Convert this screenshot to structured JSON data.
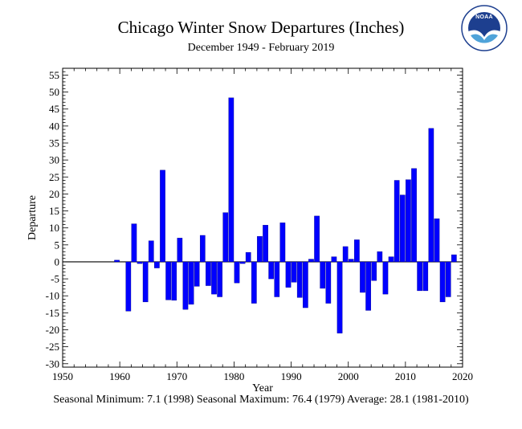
{
  "logo": {
    "text": "NOAA"
  },
  "chart_data": {
    "type": "bar",
    "title": "Chicago Winter Snow Departures (Inches)",
    "subtitle": "December 1949 - February 2019",
    "xlabel": "Year",
    "ylabel": "Departure",
    "footer": "Seasonal Minimum: 7.1 (1998) Seasonal Maximum: 76.4 (1979) Average: 28.1 (1981-2010)",
    "xlim": [
      1950,
      2020
    ],
    "ylim": [
      -31,
      57
    ],
    "x_ticks": [
      1950,
      1960,
      1970,
      1980,
      1990,
      2000,
      2010,
      2020
    ],
    "y_ticks": [
      -30,
      -25,
      -20,
      -15,
      -10,
      -5,
      0,
      5,
      10,
      15,
      20,
      25,
      30,
      35,
      40,
      45,
      50,
      55
    ],
    "bar_color": "#0000ff",
    "grid": false,
    "series": [
      {
        "x": [
          1950,
          1951,
          1952,
          1953,
          1954,
          1955,
          1956,
          1957,
          1958,
          1959,
          1960,
          1961,
          1962,
          1963,
          1964,
          1965,
          1966,
          1967,
          1968,
          1969,
          1970,
          1971,
          1972,
          1973,
          1974,
          1975,
          1976,
          1977,
          1978,
          1979,
          1980,
          1981,
          1982,
          1983,
          1984,
          1985,
          1986,
          1987,
          1988,
          1989,
          1990,
          1991,
          1992,
          1993,
          1994,
          1995,
          1996,
          1997,
          1998,
          1999,
          2000,
          2001,
          2002,
          2003,
          2004,
          2005,
          2006,
          2007,
          2008,
          2009,
          2010,
          2011,
          2012,
          2013,
          2014,
          2015,
          2016,
          2017,
          2018
        ],
        "values": [
          0,
          0,
          0,
          0,
          0,
          0,
          0,
          0,
          0,
          0.5,
          0,
          -14.5,
          11.2,
          -0.5,
          -11.8,
          6.2,
          -1.8,
          27,
          -11.2,
          -11.3,
          7,
          -14,
          -12.5,
          -7.2,
          7.8,
          -7,
          -9.5,
          -10.3,
          14.5,
          48.3,
          -6.2,
          -0.5,
          2.8,
          -12.2,
          7.5,
          10.8,
          -5,
          -10.3,
          11.5,
          -7.5,
          -6,
          -10.5,
          -13.5,
          0.8,
          13.5,
          -7.8,
          -12.2,
          1.5,
          -21,
          4.5,
          0.8,
          6.5,
          -9,
          -14.3,
          -5.5,
          3,
          -9.5,
          1.5,
          24,
          19.7,
          24.2,
          27.5,
          -8.5,
          -8.5,
          39.3,
          12.7,
          -11.8,
          -10.3,
          2.1
        ]
      }
    ]
  }
}
